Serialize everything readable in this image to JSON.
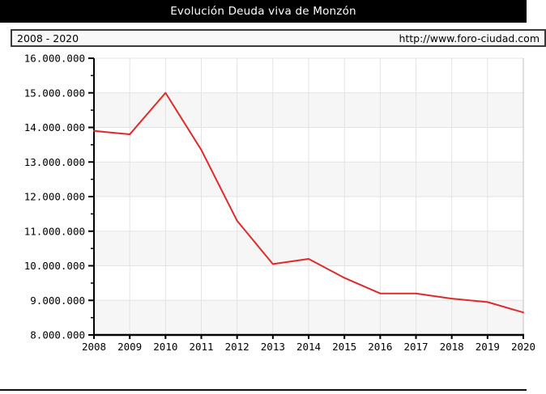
{
  "window": {
    "title_bar": "Evolución Deuda viva de Monzón"
  },
  "info_bar": {
    "range": "2008 - 2020",
    "url": "http://www.foro-ciudad.com"
  },
  "chart_data": {
    "type": "line",
    "title": "Evolución Deuda viva de Monzón",
    "xlabel": "",
    "ylabel": "",
    "x": [
      2008,
      2009,
      2010,
      2011,
      2012,
      2013,
      2014,
      2015,
      2016,
      2017,
      2018,
      2019,
      2020
    ],
    "series": [
      {
        "name": "Deuda viva",
        "color": "#e02a2a",
        "values": [
          13900000,
          13800000,
          15000000,
          13350000,
          11300000,
          10050000,
          10200000,
          9650000,
          9200000,
          9200000,
          9050000,
          8950000,
          8650000
        ]
      }
    ],
    "ylim": [
      8000000,
      16000000
    ],
    "ytick_step": 1000000,
    "ytick_minor_step": 500000,
    "ytick_labels": [
      "8.000.000",
      "9.000.000",
      "10.000.000",
      "11.000.000",
      "12.000.000",
      "13.000.000",
      "14.000.000",
      "15.000.000",
      "16.000.000"
    ],
    "xtick_labels": [
      "2008",
      "2009",
      "2010",
      "2011",
      "2012",
      "2013",
      "2014",
      "2015",
      "2016",
      "2017",
      "2018",
      "2019",
      "2020"
    ],
    "grid": true,
    "legend_position": "none",
    "colors": {
      "band": "#f6f6f6",
      "band_alt": "#ffffff",
      "grid": "#e3e3e3",
      "axis": "#000000",
      "plot_right_border": "#c0c0c0"
    }
  }
}
